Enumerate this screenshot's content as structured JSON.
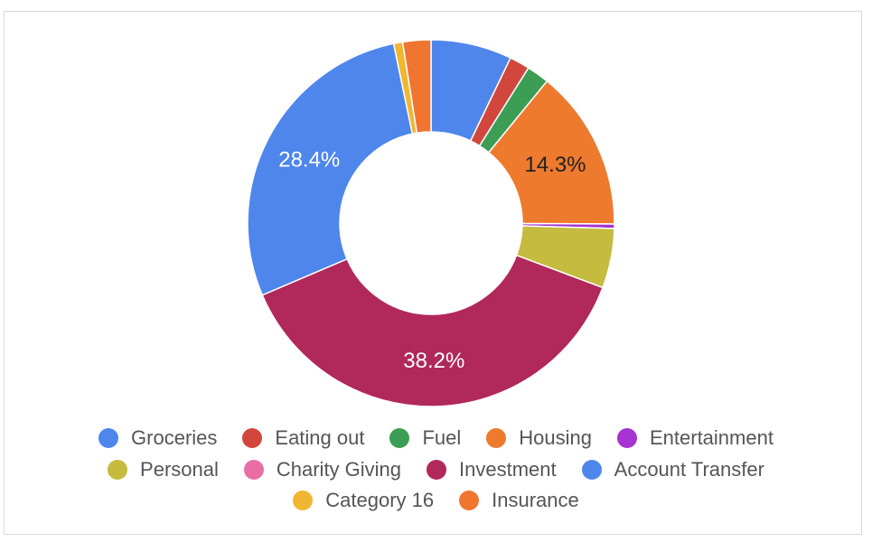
{
  "chart_data": {
    "type": "pie",
    "donut": true,
    "categories": [
      "Groceries",
      "Eating out",
      "Fuel",
      "Housing",
      "Entertainment",
      "Personal",
      "Charity Giving",
      "Investment",
      "Account Transfer",
      "Category 16",
      "Insurance"
    ],
    "values": [
      7.2,
      1.8,
      2.0,
      14.3,
      0.4,
      5.3,
      0.0,
      38.2,
      28.4,
      0.8,
      2.5
    ],
    "colors": [
      "#4f86ec",
      "#d1473d",
      "#3c9e55",
      "#ee7a2e",
      "#a532d1",
      "#c5bb3e",
      "#ea6ea6",
      "#b1285b",
      "#4f86ec",
      "#f1b631",
      "#ef7530"
    ],
    "slice_labels": [
      "",
      "",
      "",
      "14.3%",
      "",
      "",
      "",
      "38.2%",
      "28.4%",
      "",
      ""
    ],
    "slice_label_colors": [
      "#ffffff",
      "#ffffff",
      "#ffffff",
      "#222222",
      "#ffffff",
      "#ffffff",
      "#ffffff",
      "#ffffff",
      "#ffffff",
      "#ffffff",
      "#ffffff"
    ],
    "legend_position": "bottom",
    "title": ""
  },
  "legend": {
    "rows": [
      [
        0,
        1,
        2,
        3,
        4
      ],
      [
        5,
        6,
        7,
        8
      ],
      [
        9,
        10
      ]
    ]
  }
}
